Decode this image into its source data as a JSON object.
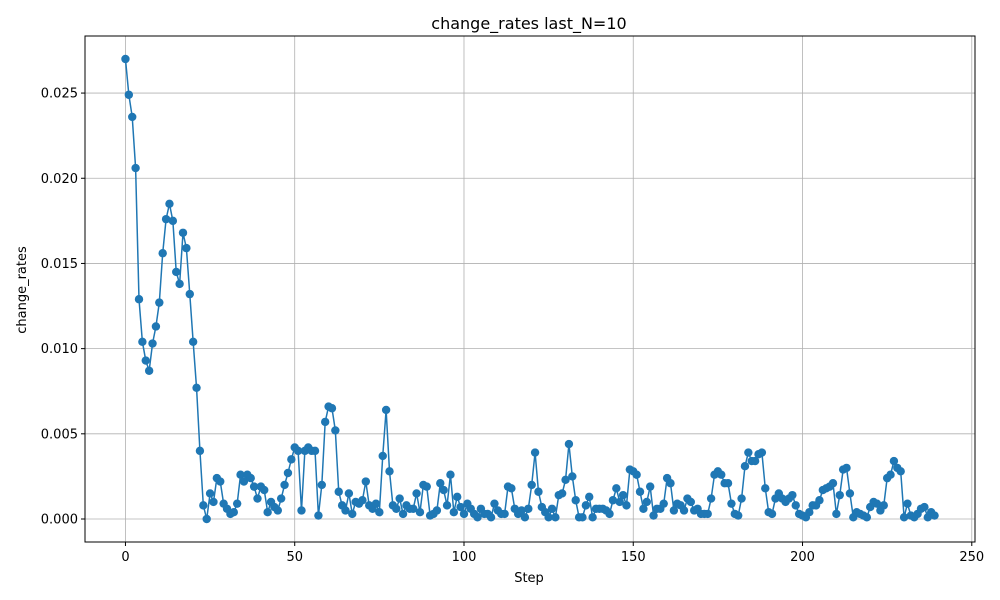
{
  "chart_data": {
    "type": "line",
    "title": "change_rates last_N=10",
    "xlabel": "Step",
    "ylabel": "change_rates",
    "xlim": [
      -11.95,
      250.95
    ],
    "ylim": [
      -0.00135,
      0.02835
    ],
    "xticks": [
      0,
      50,
      100,
      150,
      200,
      250
    ],
    "xtick_labels": [
      "0",
      "50",
      "100",
      "150",
      "200",
      "250"
    ],
    "yticks": [
      0.0,
      0.005,
      0.01,
      0.015,
      0.02,
      0.025
    ],
    "ytick_labels": [
      "0.000",
      "0.005",
      "0.010",
      "0.015",
      "0.020",
      "0.025"
    ],
    "grid": true,
    "marker": "circle",
    "series": [
      {
        "color": "#1f77b4",
        "values": [
          0.027,
          0.0249,
          0.0236,
          0.0206,
          0.0129,
          0.0104,
          0.0093,
          0.0087,
          0.0103,
          0.0113,
          0.0127,
          0.0156,
          0.0176,
          0.0185,
          0.0175,
          0.0145,
          0.0138,
          0.0168,
          0.0159,
          0.0132,
          0.0104,
          0.0077,
          0.004,
          0.0008,
          0.0,
          0.0015,
          0.001,
          0.0024,
          0.0022,
          0.0009,
          0.0006,
          0.0003,
          0.0004,
          0.0009,
          0.0026,
          0.0022,
          0.0026,
          0.0024,
          0.0019,
          0.0012,
          0.0019,
          0.0017,
          0.0004,
          0.001,
          0.0007,
          0.0005,
          0.0012,
          0.002,
          0.0027,
          0.0035,
          0.0042,
          0.004,
          0.0005,
          0.004,
          0.0042,
          0.004,
          0.004,
          0.0002,
          0.002,
          0.0057,
          0.0066,
          0.0065,
          0.0052,
          0.0016,
          0.0008,
          0.0005,
          0.0015,
          0.0003,
          0.001,
          0.0009,
          0.0011,
          0.0022,
          0.0008,
          0.0006,
          0.0009,
          0.0004,
          0.0037,
          0.0064,
          0.0028,
          0.0008,
          0.0006,
          0.0012,
          0.0003,
          0.0008,
          0.0006,
          0.0006,
          0.0015,
          0.0004,
          0.002,
          0.0019,
          0.0002,
          0.0003,
          0.0005,
          0.0021,
          0.0017,
          0.0008,
          0.0026,
          0.0004,
          0.0013,
          0.0007,
          0.0003,
          0.0009,
          0.0006,
          0.0003,
          0.0001,
          0.0006,
          0.0003,
          0.0003,
          0.0001,
          0.0009,
          0.0005,
          0.0003,
          0.0003,
          0.0019,
          0.0018,
          0.0006,
          0.0003,
          0.0005,
          0.0001,
          0.0006,
          0.002,
          0.0039,
          0.0016,
          0.0007,
          0.0004,
          0.0001,
          0.0006,
          0.0001,
          0.0014,
          0.0015,
          0.0023,
          0.0044,
          0.0025,
          0.0011,
          0.0001,
          0.0001,
          0.0008,
          0.0013,
          0.0001,
          0.0006,
          0.0006,
          0.0006,
          0.0005,
          0.0003,
          0.0011,
          0.0018,
          0.001,
          0.0014,
          0.0008,
          0.0029,
          0.0028,
          0.0026,
          0.0016,
          0.0006,
          0.001,
          0.0019,
          0.0002,
          0.0006,
          0.0006,
          0.0009,
          0.0024,
          0.0021,
          0.0005,
          0.0009,
          0.0008,
          0.0005,
          0.0012,
          0.001,
          0.0005,
          0.0006,
          0.0003,
          0.0003,
          0.0003,
          0.0012,
          0.0026,
          0.0028,
          0.0026,
          0.0021,
          0.0021,
          0.0009,
          0.0003,
          0.0002,
          0.0012,
          0.0031,
          0.0039,
          0.0034,
          0.0034,
          0.0038,
          0.0039,
          0.0018,
          0.0004,
          0.0003,
          0.0012,
          0.0015,
          0.0012,
          0.001,
          0.0012,
          0.0014,
          0.0008,
          0.0003,
          0.0002,
          0.0001,
          0.0004,
          0.0008,
          0.0008,
          0.0011,
          0.0017,
          0.0018,
          0.0019,
          0.0021,
          0.0003,
          0.0014,
          0.0029,
          0.003,
          0.0015,
          0.0001,
          0.0004,
          0.0003,
          0.0002,
          0.0001,
          0.0007,
          0.001,
          0.0009,
          0.0005,
          0.0008,
          0.0024,
          0.0026,
          0.0034,
          0.003,
          0.0028,
          0.0001,
          0.0009,
          0.0002,
          0.0001,
          0.0003,
          0.0006,
          0.0007,
          0.0001,
          0.0004,
          0.0002
        ]
      }
    ]
  }
}
